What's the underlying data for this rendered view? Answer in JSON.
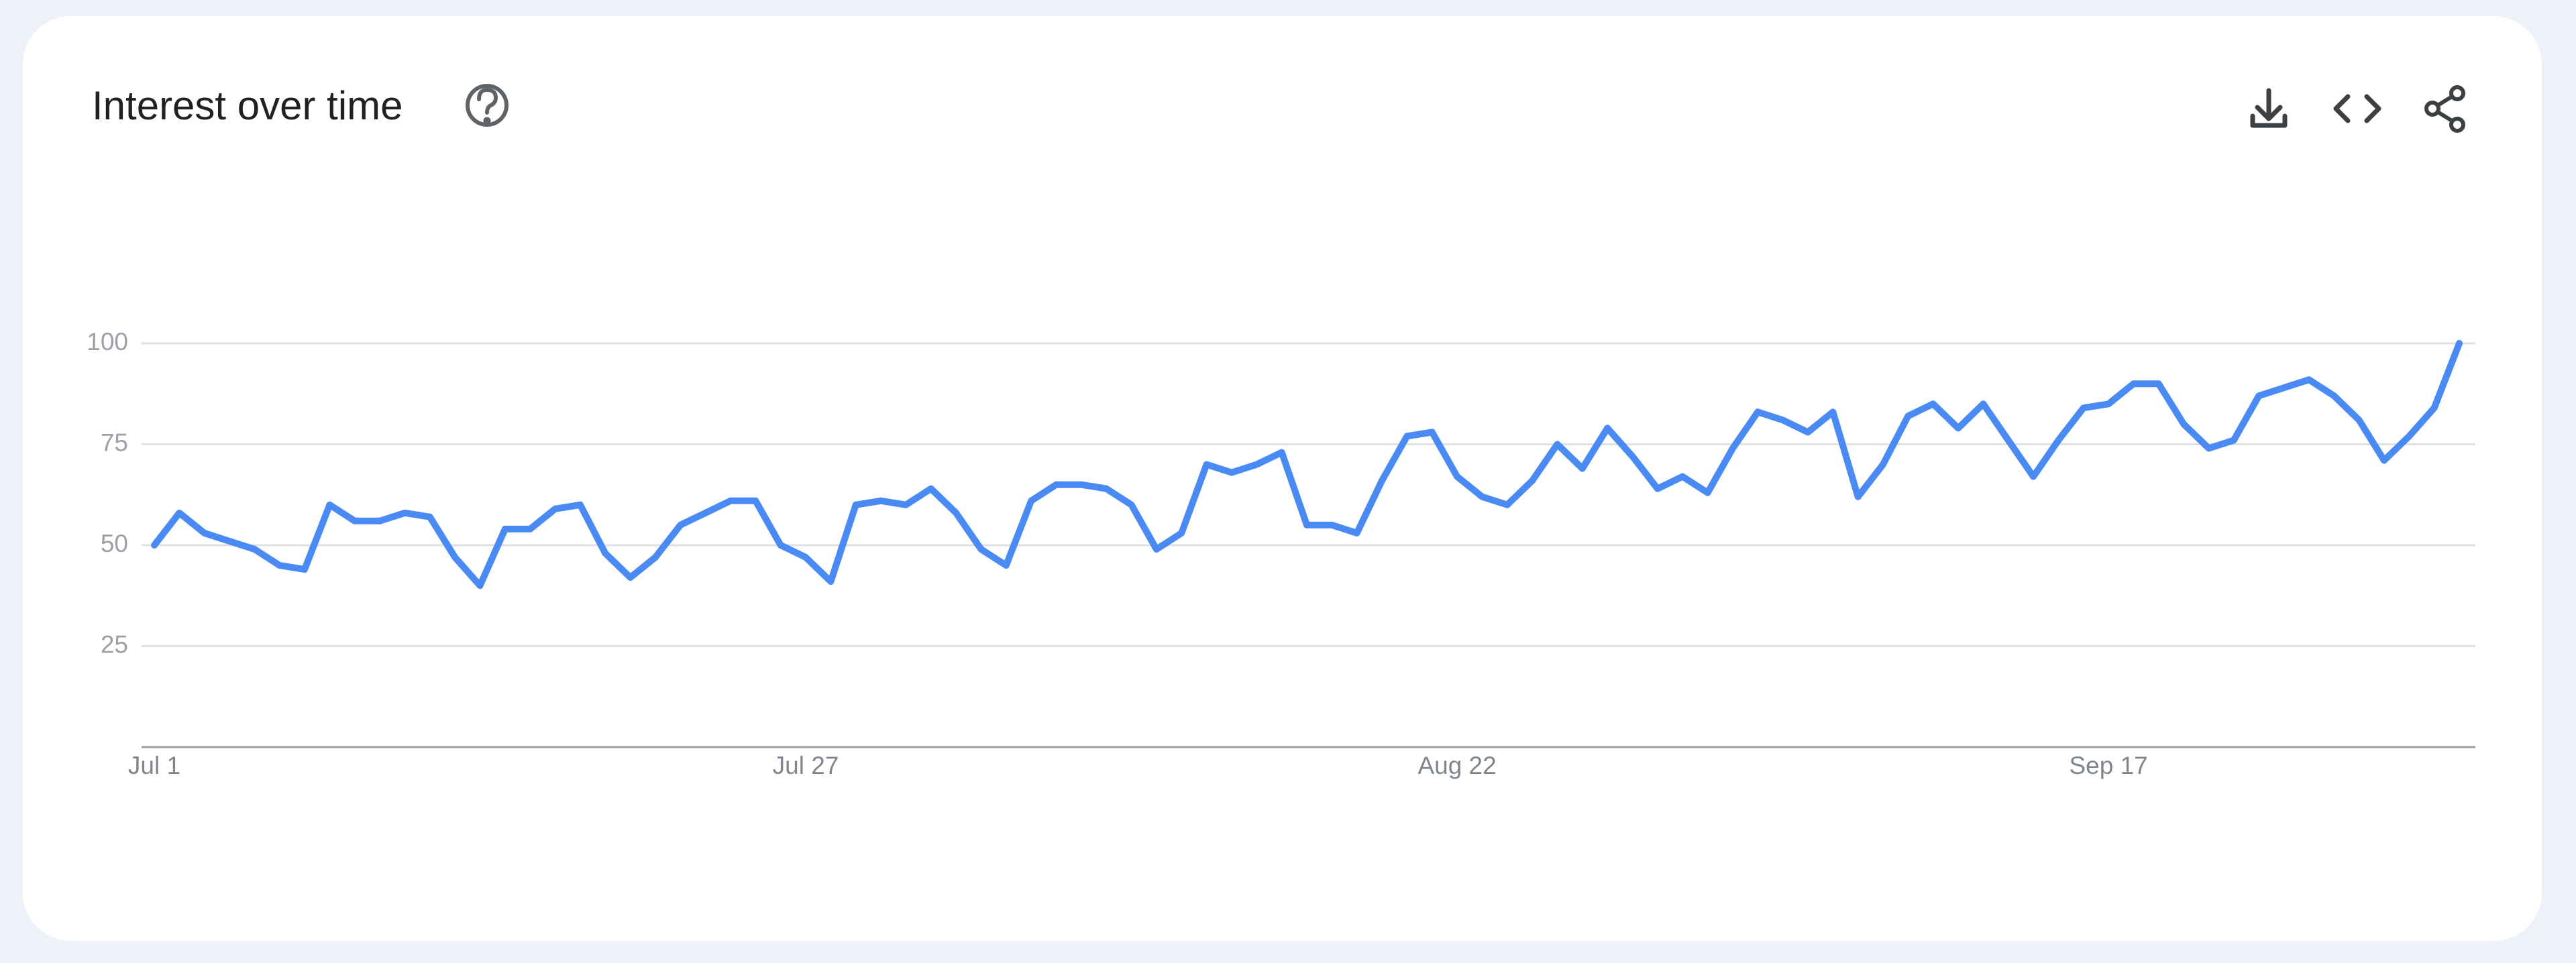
{
  "chart_data": {
    "type": "line",
    "title": "Interest over time",
    "categories": [
      "Jul 1",
      null,
      null,
      null,
      null,
      null,
      null,
      null,
      null,
      null,
      null,
      null,
      null,
      null,
      null,
      null,
      null,
      null,
      null,
      null,
      null,
      null,
      null,
      null,
      null,
      null,
      "Jul 27",
      null,
      null,
      null,
      null,
      null,
      null,
      null,
      null,
      null,
      null,
      null,
      null,
      null,
      null,
      null,
      null,
      null,
      null,
      null,
      null,
      null,
      null,
      null,
      null,
      null,
      "Aug 22",
      null,
      null,
      null,
      null,
      null,
      null,
      null,
      null,
      null,
      null,
      null,
      null,
      null,
      null,
      null,
      null,
      null,
      null,
      null,
      null,
      null,
      null,
      null,
      null,
      null,
      "Sep 17",
      null,
      null,
      null,
      null,
      null,
      null,
      null,
      null,
      null,
      null,
      null,
      null,
      null,
      null
    ],
    "series": [
      {
        "color": "#4a8af4",
        "values": [
          50,
          58,
          53,
          51,
          49,
          45,
          44,
          60,
          56,
          56,
          58,
          57,
          47,
          40,
          54,
          54,
          59,
          60,
          48,
          42,
          47,
          55,
          58,
          61,
          61,
          50,
          47,
          41,
          60,
          61,
          60,
          64,
          58,
          49,
          45,
          61,
          65,
          65,
          64,
          60,
          49,
          53,
          70,
          68,
          70,
          73,
          55,
          55,
          53,
          66,
          77,
          78,
          67,
          62,
          60,
          66,
          75,
          69,
          79,
          72,
          64,
          67,
          63,
          74,
          83,
          81,
          78,
          83,
          62,
          70,
          82,
          85,
          79,
          85,
          76,
          67,
          76,
          84,
          85,
          90,
          90,
          80,
          74,
          76,
          87,
          89,
          91,
          87,
          81,
          71,
          77,
          84,
          100
        ]
      }
    ],
    "ylim": [
      0,
      100
    ],
    "yticks": [
      25,
      50,
      75,
      100
    ],
    "grid": true
  }
}
